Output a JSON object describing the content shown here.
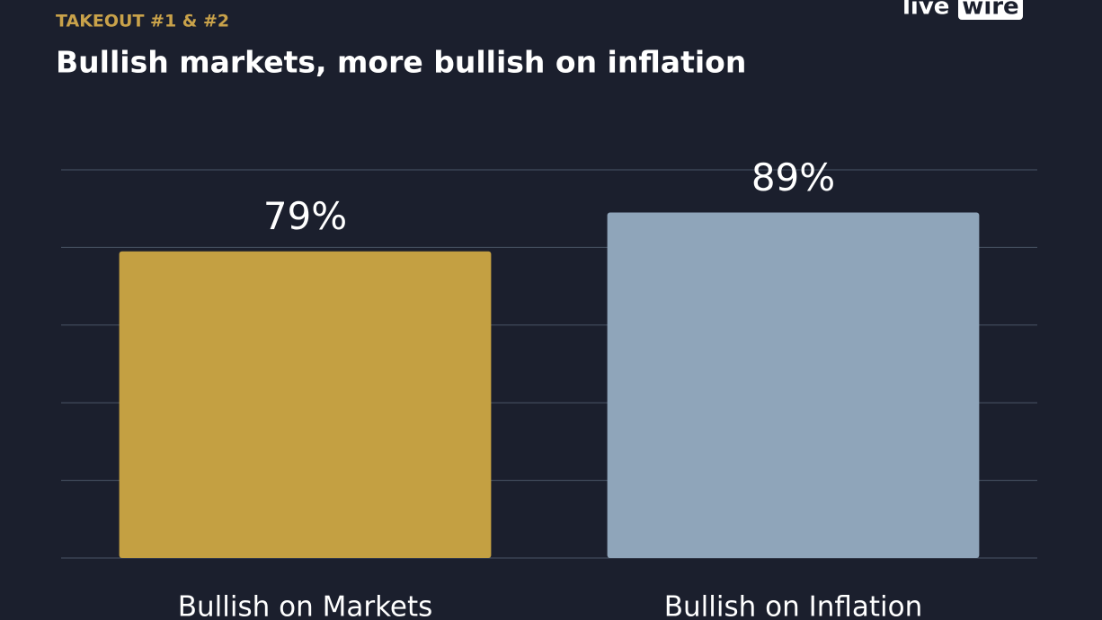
{
  "logo": {
    "left": "live",
    "right": "wire"
  },
  "chart_data": {
    "type": "bar",
    "subtitle": "TAKEOUT #1 & #2",
    "title": "Bullish markets, more bullish on inflation",
    "categories": [
      "Bullish on Markets",
      "Bullish on Inflation"
    ],
    "values": [
      79,
      89
    ],
    "value_labels": [
      "79%",
      "89%"
    ],
    "colors": [
      "#c4a042",
      "#8fa5ba"
    ],
    "ylim": [
      0,
      100
    ],
    "yticks": [
      0,
      20,
      40,
      60,
      80,
      100
    ],
    "grid": true
  }
}
